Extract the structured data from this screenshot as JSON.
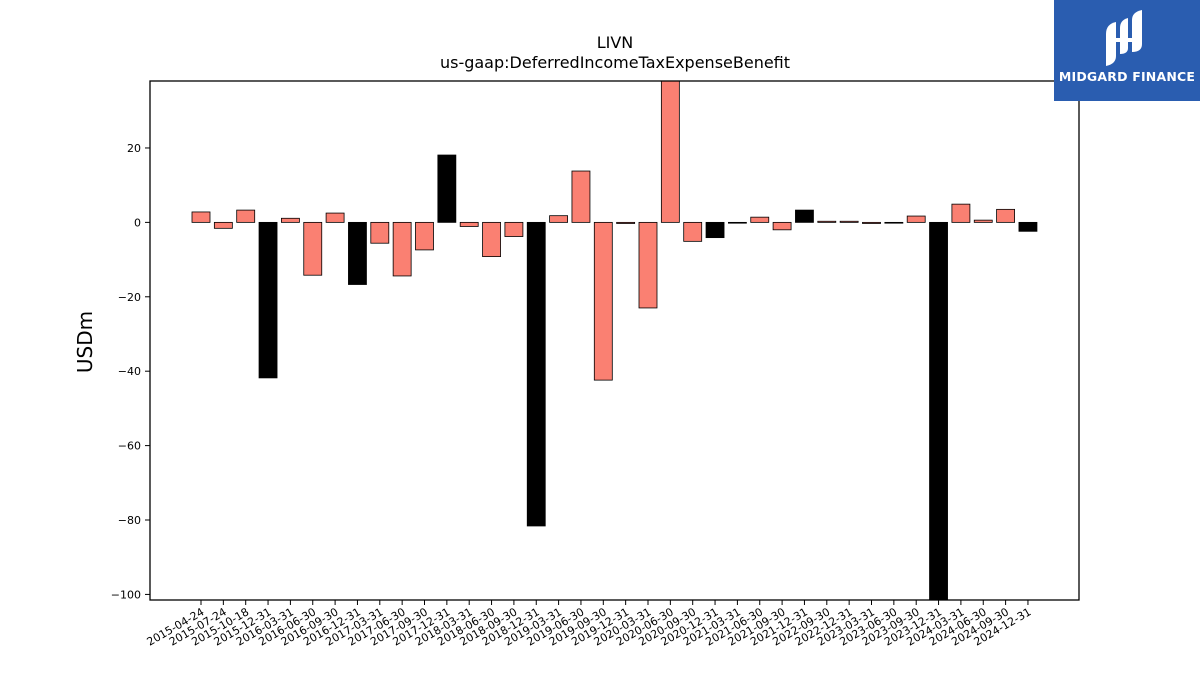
{
  "chart_data": {
    "type": "bar",
    "title": "LIVN",
    "subtitle": "us-gaap:DeferredIncomeTaxExpenseBenefit",
    "ylabel": "USDm",
    "xlabel": "",
    "ylim": [
      -101.5,
      38.0
    ],
    "yticks": [
      20,
      0,
      -20,
      -40,
      -60,
      -80,
      -100
    ],
    "ytick_labels": [
      "20",
      "0",
      "−20",
      "−40",
      "−60",
      "−80",
      "−100"
    ],
    "grid": false,
    "colors": {
      "quarter": "#fa8072",
      "annual": "#000000",
      "edge": "#000000"
    },
    "categories": [
      "2015-04-24",
      "2015-07-24",
      "2015-10-18",
      "2015-12-31",
      "2016-03-31",
      "2016-06-30",
      "2016-09-30",
      "2016-12-31",
      "2017-03-31",
      "2017-06-30",
      "2017-09-30",
      "2017-12-31",
      "2018-03-31",
      "2018-06-30",
      "2018-09-30",
      "2018-12-31",
      "2019-03-31",
      "2019-06-30",
      "2019-09-30",
      "2019-12-31",
      "2020-03-31",
      "2020-06-30",
      "2020-09-30",
      "2020-12-31",
      "2021-03-31",
      "2021-06-30",
      "2021-09-30",
      "2021-12-31",
      "2022-09-30",
      "2022-12-31",
      "2023-03-31",
      "2023-06-30",
      "2023-09-30",
      "2023-12-31",
      "2024-03-31",
      "2024-06-30",
      "2024-09-30",
      "2024-12-31"
    ],
    "values": [
      2.8,
      -1.6,
      3.3,
      -41.8,
      1.1,
      -14.2,
      2.5,
      -16.7,
      -5.6,
      -14.4,
      -7.4,
      18.1,
      -1.1,
      -9.2,
      -3.8,
      -81.6,
      1.8,
      13.8,
      -42.4,
      -0.3,
      -23.0,
      38.0,
      -5.1,
      -4.1,
      -0.2,
      1.4,
      -2.0,
      3.3,
      0.3,
      0.3,
      -0.3,
      -0.2,
      1.7,
      -101.5,
      4.9,
      0.6,
      3.5,
      -2.4
    ],
    "annual_flags": [
      false,
      false,
      false,
      true,
      false,
      false,
      false,
      true,
      false,
      false,
      false,
      true,
      false,
      false,
      false,
      true,
      false,
      false,
      false,
      false,
      false,
      false,
      false,
      true,
      false,
      false,
      false,
      true,
      false,
      false,
      false,
      false,
      false,
      true,
      false,
      false,
      false,
      true
    ]
  },
  "logo": {
    "text": "MIDGARD FINANCE",
    "icon": "midgard-logo-icon",
    "background": "#2a5db0"
  }
}
